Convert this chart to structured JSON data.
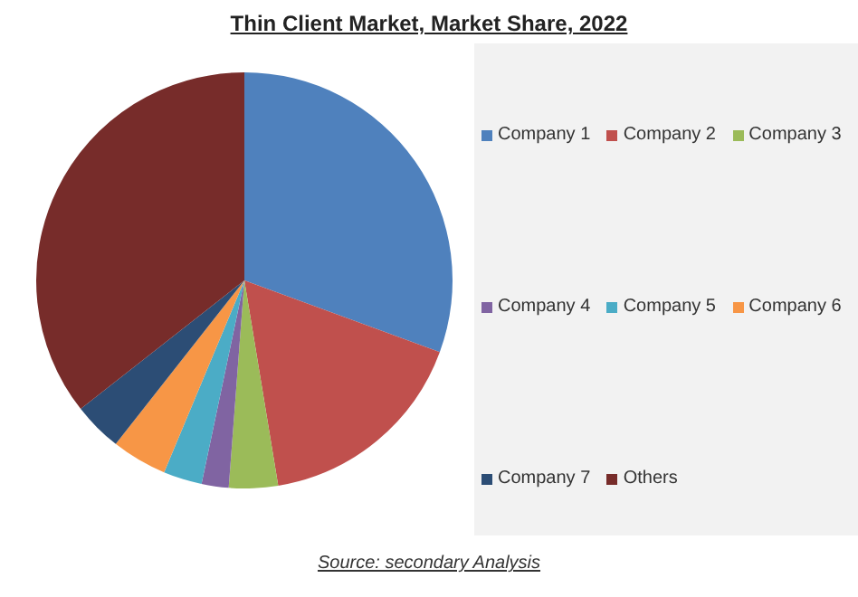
{
  "chart_data": {
    "type": "pie",
    "title": "Thin Client Market, Market Share, 2022",
    "categories": [
      "Company 1",
      "Company 2",
      "Company 3",
      "Company 4",
      "Company 5",
      "Company 6",
      "Company 7",
      "Others"
    ],
    "values": [
      30.6,
      16.8,
      3.8,
      2.1,
      3.0,
      4.3,
      3.8,
      35.6
    ],
    "colors": [
      "#4f81bd",
      "#c0504d",
      "#9bbb59",
      "#8064a2",
      "#4bacc6",
      "#f79646",
      "#2c4d75",
      "#772c2a"
    ],
    "legend": "right",
    "annotations": [
      "Source: secondary Analysis"
    ]
  }
}
